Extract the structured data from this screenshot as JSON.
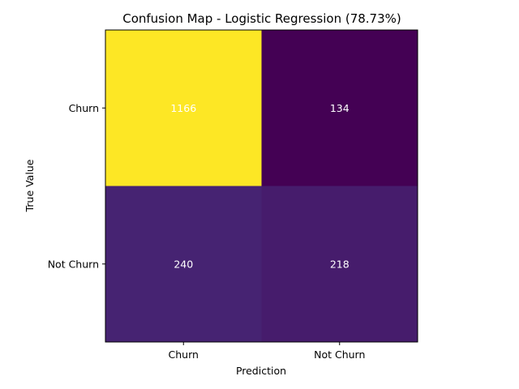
{
  "chart_data": {
    "type": "heatmap",
    "title": "Confusion Map - Logistic Regression (78.73%)",
    "xlabel": "Prediction",
    "ylabel": "True Value",
    "x_categories": [
      "Churn",
      "Not Churn"
    ],
    "y_categories": [
      "Churn",
      "Not Churn"
    ],
    "values": [
      [
        1166,
        134
      ],
      [
        240,
        218
      ]
    ],
    "colormap": "viridis",
    "colors": {
      "high": "#fde725",
      "low": "#440154",
      "cell_text": "#ffffff"
    },
    "grid": false,
    "legend": "none"
  }
}
